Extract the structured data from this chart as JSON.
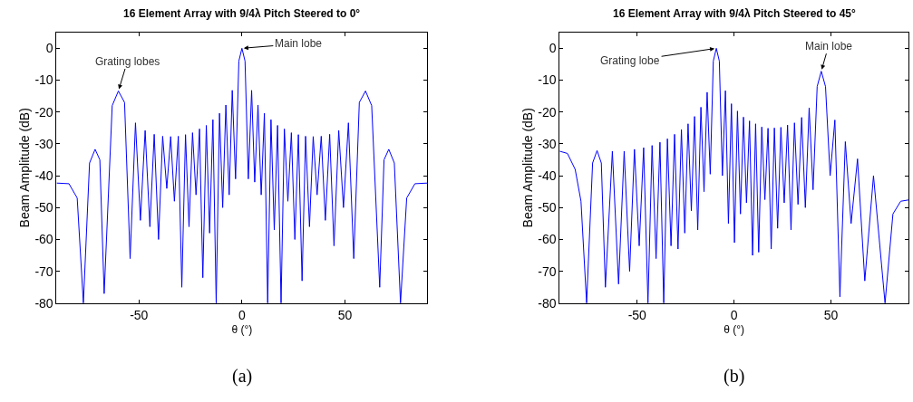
{
  "chart_data": [
    {
      "type": "line",
      "title": "16 Element Array with 9/4λ Pitch Steered to 0°",
      "xlabel": "θ (°)",
      "ylabel": "Beam Amplitude (dB)",
      "color": "#0000ff",
      "xlim": [
        -90,
        90
      ],
      "ylim": [
        -80,
        5
      ],
      "xticks": [
        -50,
        0,
        50
      ],
      "yticks": [
        -80,
        -70,
        -60,
        -50,
        -40,
        -30,
        -20,
        -10,
        0
      ],
      "x": [
        -90,
        -84,
        -80,
        -77,
        -74,
        -71.3,
        -69,
        -66.9,
        -63,
        -60,
        -57,
        -54.3,
        -51.7,
        -49.3,
        -47,
        -44.7,
        -42.6,
        -40.5,
        -38.5,
        -36.5,
        -34.6,
        -32.8,
        -30.9,
        -29.2,
        -27.4,
        -25.7,
        -24,
        -22.3,
        -20.6,
        -19,
        -17.3,
        -15.7,
        -14.1,
        -12.5,
        -10.9,
        -9.35,
        -7.8,
        -6.2,
        -4.7,
        -3.1,
        -1.5,
        0,
        1.5,
        3.1,
        4.7,
        6.2,
        7.8,
        9.35,
        10.9,
        12.5,
        14.1,
        15.7,
        17.3,
        19,
        20.6,
        22.3,
        24,
        25.7,
        27.4,
        29.2,
        30.9,
        32.8,
        34.6,
        36.5,
        38.5,
        40.5,
        42.6,
        44.7,
        47,
        49.3,
        51.7,
        54.3,
        57,
        60,
        63,
        66.9,
        69,
        71.3,
        74,
        77,
        80,
        84,
        90
      ],
      "values": [
        -42.3,
        -42.5,
        -47,
        -80,
        -36,
        -31.7,
        -35,
        -77,
        -18,
        -13.4,
        -17,
        -66,
        -23.4,
        -54,
        -25.8,
        -56,
        -27,
        -60,
        -27.6,
        -44,
        -27.7,
        -48,
        -27.6,
        -75,
        -27.1,
        -56,
        -26.5,
        -46,
        -25.3,
        -72,
        -24.2,
        -58,
        -22.4,
        -80,
        -20.4,
        -50,
        -17.8,
        -46,
        -13.2,
        -41,
        -4,
        0,
        -4,
        -41,
        -13.2,
        -42,
        -17.8,
        -46,
        -20.4,
        -80,
        -22.4,
        -57,
        -24.2,
        -80,
        -25.3,
        -48,
        -26.5,
        -60,
        -27.1,
        -73,
        -27.6,
        -56,
        -27.7,
        -46,
        -27.6,
        -54,
        -27,
        -62,
        -25.8,
        -50,
        -23.4,
        -66,
        -17,
        -13.4,
        -18,
        -75,
        -35,
        -31.7,
        -36,
        -80,
        -47,
        -42.5,
        -42.3
      ],
      "annotations": [
        {
          "text": "Main lobe",
          "x": 0,
          "y": 0
        },
        {
          "text": "Grating lobes",
          "x": -60,
          "y": -13.4
        },
        "(a)"
      ]
    },
    {
      "type": "line",
      "title": "16 Element Array with 9/4λ Pitch Steered to 45°",
      "xlabel": "θ (°)",
      "ylabel": "Beam Amplitude (dB)",
      "color": "#0000ff",
      "xlim": [
        -90,
        90
      ],
      "ylim": [
        -80,
        5
      ],
      "xticks": [
        -50,
        0,
        50
      ],
      "yticks": [
        -80,
        -70,
        -60,
        -50,
        -40,
        -30,
        -20,
        -10,
        0
      ],
      "x": [
        -90,
        -86,
        -82,
        -79,
        -76.1,
        -73,
        -70.7,
        -68.5,
        -66.4,
        -62.8,
        -59.6,
        -56.7,
        -53.9,
        -51.4,
        -48.95,
        -46.65,
        -44.43,
        -42.3,
        -40.24,
        -38.24,
        -36.29,
        -34.39,
        -32.53,
        -30.71,
        -28.92,
        -27.16,
        -25.43,
        -23.73,
        -22.04,
        -20.38,
        -18.74,
        -17.1,
        -15.49,
        -13.89,
        -12.29,
        -10.7,
        -9.14,
        -7.6,
        -6.01,
        -4.45,
        -2.9,
        -1.35,
        0.21,
        1.76,
        3.31,
        4.87,
        6.42,
        7.99,
        9.56,
        11.13,
        12.72,
        14.31,
        15.92,
        17.54,
        19.17,
        20.82,
        22.49,
        24.18,
        25.89,
        27.63,
        29.39,
        31.19,
        33.02,
        34.89,
        36.8,
        38.76,
        40.78,
        42.9,
        45.01,
        47.2,
        49.59,
        52.04,
        54.64,
        57.43,
        60.41,
        63.73,
        67.48,
        71.97,
        77.93,
        82,
        86,
        90
      ],
      "values": [
        -32.3,
        -33,
        -38,
        -48,
        -80,
        -36,
        -32.1,
        -36,
        -75,
        -32.3,
        -74,
        -32.3,
        -70,
        -31.7,
        -62,
        -31.2,
        -80,
        -30.5,
        -66,
        -29.5,
        -80,
        -28.4,
        -62,
        -27,
        -63,
        -25.5,
        -58,
        -23.7,
        -51,
        -21.4,
        -57,
        -18.5,
        -45,
        -13.8,
        -39.5,
        -4,
        0,
        -4,
        -40,
        -13.3,
        -55,
        -17.4,
        -61,
        -19.7,
        -52,
        -21.6,
        -48.5,
        -22.8,
        -65,
        -23.7,
        -64,
        -24.7,
        -47.5,
        -25.1,
        -63,
        -25,
        -56.5,
        -24.8,
        -48.5,
        -24.1,
        -57,
        -23.4,
        -49,
        -21.7,
        -50,
        -18.7,
        -44.4,
        -12,
        -7.2,
        -12,
        -40,
        -22.5,
        -78,
        -29.3,
        -55,
        -34.7,
        -73,
        -40,
        -80,
        -52,
        -48,
        -47.6
      ],
      "annotations": [
        {
          "text": "Grating lobe",
          "x": -9.14,
          "y": 0
        },
        {
          "text": "Main lobe",
          "x": 45.01,
          "y": -7.2
        },
        "(b)"
      ]
    }
  ]
}
